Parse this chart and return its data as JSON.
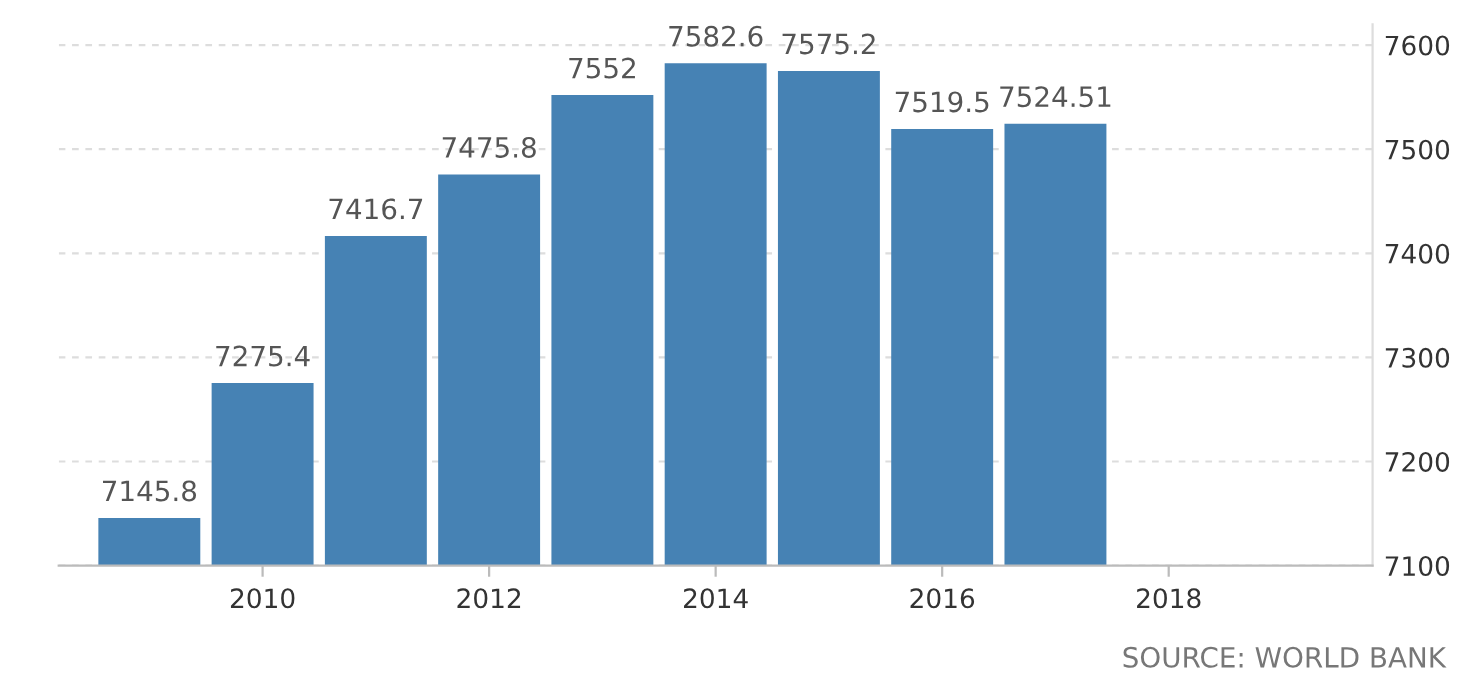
{
  "chart_data": {
    "type": "bar",
    "x": [
      2009,
      2010,
      2011,
      2012,
      2013,
      2014,
      2015,
      2016,
      2017
    ],
    "values": [
      7145.8,
      7275.4,
      7416.7,
      7475.8,
      7552,
      7582.6,
      7575.2,
      7519.5,
      7524.51
    ],
    "color": "#4682b4",
    "data_labels": true,
    "xlim": [
      2008.2,
      2019.8
    ],
    "xticks": [
      2010,
      2012,
      2014,
      2016,
      2018
    ],
    "ylim": [
      7100,
      7620
    ],
    "yticks": [
      7100,
      7200,
      7300,
      7400,
      7500,
      7600
    ],
    "grid": "y",
    "annotations": [
      "SOURCE: WORLD BANK"
    ]
  }
}
